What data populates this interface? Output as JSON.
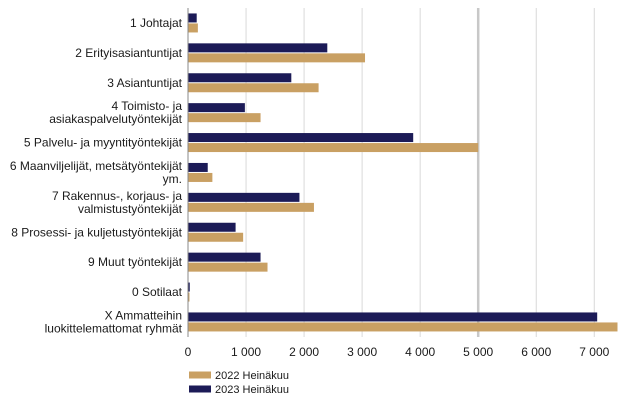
{
  "chart_data": {
    "type": "bar",
    "orientation": "horizontal",
    "title": "",
    "xlabel": "",
    "ylabel": "",
    "categories": [
      [
        "1 Johtajat"
      ],
      [
        "2 Erityisasiantuntijat"
      ],
      [
        "3 Asiantuntijat"
      ],
      [
        "4 Toimisto- ja",
        "asiakaspalvelutyöntekijät"
      ],
      [
        "5 Palvelu- ja myyntityöntekijät"
      ],
      [
        "6 Maanviljelijät, metsätyöntekijät",
        "ym."
      ],
      [
        "7 Rakennus-, korjaus- ja",
        "valmistustyöntekijät"
      ],
      [
        "8 Prosessi- ja kuljetustyöntekijät"
      ],
      [
        "9 Muut työntekijät"
      ],
      [
        "0 Sotilaat"
      ],
      [
        "X Ammatteihin",
        "luokittelemattomat ryhmät"
      ]
    ],
    "series": [
      {
        "name": "2022 Heinäkuu",
        "color": "#c9a063",
        "values": [
          170,
          3050,
          2250,
          1250,
          5000,
          420,
          2170,
          950,
          1370,
          25,
          7400
        ]
      },
      {
        "name": "2023 Heinäkuu",
        "color": "#1c1b57",
        "values": [
          150,
          2400,
          1780,
          980,
          3880,
          340,
          1920,
          820,
          1250,
          30,
          7050
        ]
      }
    ],
    "xlim": [
      0,
      7400
    ],
    "ticks": [
      0,
      1000,
      2000,
      3000,
      4000,
      5000,
      6000,
      7000
    ],
    "tick_labels": [
      "0",
      "1 000",
      "2 000",
      "3 000",
      "4 000",
      "5 000",
      "6 000",
      "7 000"
    ],
    "grid": true,
    "legend_position": "bottom-left"
  }
}
